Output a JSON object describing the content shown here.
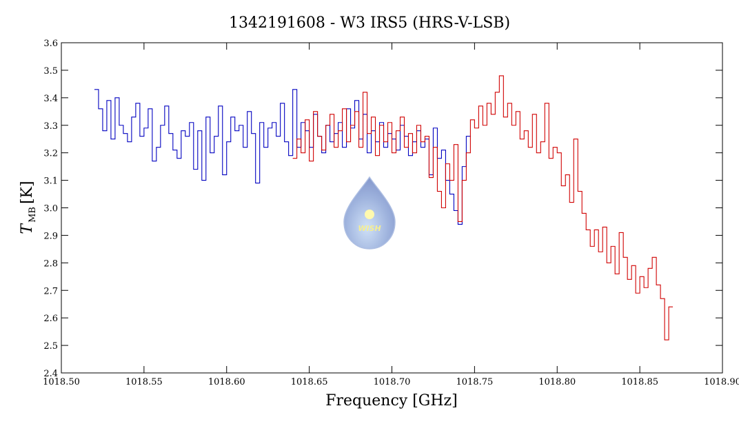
{
  "chart_data": {
    "type": "line",
    "step": true,
    "title": "1342191608 - W3 IRS5 (HRS-V-LSB)",
    "xlabel": "Frequency [GHz]",
    "ylabel": [
      "T",
      "MB",
      "[K]"
    ],
    "logo_text": "WISH",
    "xlim": [
      1018.5,
      1018.9
    ],
    "ylim": [
      2.4,
      3.6
    ],
    "xticks": [
      {
        "value": 1018.5,
        "label": "1018.50"
      },
      1018.55,
      {
        "value": 1018.6,
        "label": "1018.60"
      },
      1018.65,
      {
        "value": 1018.7,
        "label": "1018.70"
      },
      1018.75,
      {
        "value": 1018.8,
        "label": "1018.80"
      },
      1018.85,
      {
        "value": 1018.9,
        "label": "1018.90"
      }
    ],
    "yticks": [
      2.4,
      2.5,
      2.6,
      2.7,
      2.8,
      2.9,
      {
        "value": 3.0,
        "label": "3.0"
      },
      3.1,
      3.2,
      3.3,
      3.4,
      3.5,
      3.6
    ],
    "series": [
      {
        "color": "#0000c0",
        "x": [
          1018.52,
          1018.5225,
          1018.525,
          1018.5275,
          1018.53,
          1018.5325,
          1018.535,
          1018.5375,
          1018.54,
          1018.5425,
          1018.545,
          1018.5475,
          1018.55,
          1018.5525,
          1018.555,
          1018.5575,
          1018.56,
          1018.5625,
          1018.565,
          1018.5675,
          1018.57,
          1018.5725,
          1018.575,
          1018.5775,
          1018.58,
          1018.5825,
          1018.585,
          1018.5875,
          1018.59,
          1018.5925,
          1018.595,
          1018.5975,
          1018.6,
          1018.6025,
          1018.605,
          1018.6075,
          1018.61,
          1018.6125,
          1018.615,
          1018.6175,
          1018.62,
          1018.6225,
          1018.625,
          1018.6275,
          1018.63,
          1018.6325,
          1018.635,
          1018.6375,
          1018.64,
          1018.6425,
          1018.645,
          1018.6475,
          1018.65,
          1018.6525,
          1018.655,
          1018.6575,
          1018.66,
          1018.6625,
          1018.665,
          1018.6675,
          1018.67,
          1018.6725,
          1018.675,
          1018.6775,
          1018.68,
          1018.6825,
          1018.685,
          1018.6875,
          1018.69,
          1018.6925,
          1018.695,
          1018.6975,
          1018.7,
          1018.7025,
          1018.705,
          1018.7075,
          1018.71,
          1018.7125,
          1018.715,
          1018.7175,
          1018.72,
          1018.7225,
          1018.725,
          1018.7275,
          1018.73,
          1018.7325,
          1018.735,
          1018.7375,
          1018.74,
          1018.7425,
          1018.745
        ],
        "values": [
          3.43,
          3.36,
          3.28,
          3.39,
          3.25,
          3.4,
          3.3,
          3.27,
          3.24,
          3.33,
          3.38,
          3.26,
          3.29,
          3.36,
          3.17,
          3.22,
          3.3,
          3.37,
          3.27,
          3.21,
          3.18,
          3.28,
          3.26,
          3.31,
          3.14,
          3.28,
          3.1,
          3.33,
          3.2,
          3.26,
          3.37,
          3.12,
          3.24,
          3.33,
          3.28,
          3.3,
          3.22,
          3.35,
          3.27,
          3.09,
          3.31,
          3.22,
          3.29,
          3.31,
          3.26,
          3.38,
          3.24,
          3.19,
          3.43,
          3.22,
          3.31,
          3.28,
          3.22,
          3.34,
          3.26,
          3.2,
          3.3,
          3.24,
          3.27,
          3.31,
          3.22,
          3.36,
          3.29,
          3.39,
          3.25,
          3.34,
          3.2,
          3.28,
          3.24,
          3.31,
          3.22,
          3.27,
          3.25,
          3.21,
          3.3,
          3.26,
          3.19,
          3.24,
          3.28,
          3.22,
          3.25,
          3.12,
          3.29,
          3.18,
          3.21,
          3.1,
          3.05,
          2.99,
          2.94,
          3.15,
          3.26
        ]
      },
      {
        "color": "#d00000",
        "x": [
          1018.64,
          1018.6425,
          1018.645,
          1018.6475,
          1018.65,
          1018.6525,
          1018.655,
          1018.6575,
          1018.66,
          1018.6625,
          1018.665,
          1018.6675,
          1018.67,
          1018.6725,
          1018.675,
          1018.6775,
          1018.68,
          1018.6825,
          1018.685,
          1018.6875,
          1018.69,
          1018.6925,
          1018.695,
          1018.6975,
          1018.7,
          1018.7025,
          1018.705,
          1018.7075,
          1018.71,
          1018.7125,
          1018.715,
          1018.7175,
          1018.72,
          1018.7225,
          1018.725,
          1018.7275,
          1018.73,
          1018.7325,
          1018.735,
          1018.7375,
          1018.74,
          1018.7425,
          1018.745,
          1018.7475,
          1018.75,
          1018.7525,
          1018.755,
          1018.7575,
          1018.76,
          1018.7625,
          1018.765,
          1018.7675,
          1018.77,
          1018.7725,
          1018.775,
          1018.7775,
          1018.78,
          1018.7825,
          1018.785,
          1018.7875,
          1018.79,
          1018.7925,
          1018.795,
          1018.7975,
          1018.8,
          1018.8025,
          1018.805,
          1018.8075,
          1018.81,
          1018.8125,
          1018.815,
          1018.8175,
          1018.82,
          1018.8225,
          1018.825,
          1018.8275,
          1018.83,
          1018.8325,
          1018.835,
          1018.8375,
          1018.84,
          1018.8425,
          1018.845,
          1018.8475,
          1018.85,
          1018.8525,
          1018.855,
          1018.8575,
          1018.86,
          1018.8625,
          1018.865,
          1018.8675
        ],
        "values": [
          3.18,
          3.25,
          3.2,
          3.32,
          3.17,
          3.35,
          3.26,
          3.21,
          3.3,
          3.34,
          3.22,
          3.28,
          3.36,
          3.24,
          3.3,
          3.35,
          3.22,
          3.42,
          3.27,
          3.33,
          3.19,
          3.3,
          3.24,
          3.31,
          3.2,
          3.28,
          3.33,
          3.22,
          3.27,
          3.2,
          3.3,
          3.24,
          3.26,
          3.11,
          3.22,
          3.06,
          3.0,
          3.16,
          3.1,
          3.23,
          2.95,
          3.1,
          3.2,
          3.32,
          3.29,
          3.37,
          3.3,
          3.38,
          3.34,
          3.42,
          3.48,
          3.33,
          3.38,
          3.3,
          3.35,
          3.25,
          3.28,
          3.22,
          3.34,
          3.2,
          3.24,
          3.38,
          3.18,
          3.22,
          3.2,
          3.08,
          3.12,
          3.02,
          3.25,
          3.06,
          2.98,
          2.92,
          2.86,
          2.92,
          2.84,
          2.93,
          2.8,
          2.86,
          2.76,
          2.91,
          2.82,
          2.74,
          2.79,
          2.69,
          2.75,
          2.71,
          2.78,
          2.82,
          2.72,
          2.67,
          2.52,
          2.64
        ]
      }
    ]
  }
}
